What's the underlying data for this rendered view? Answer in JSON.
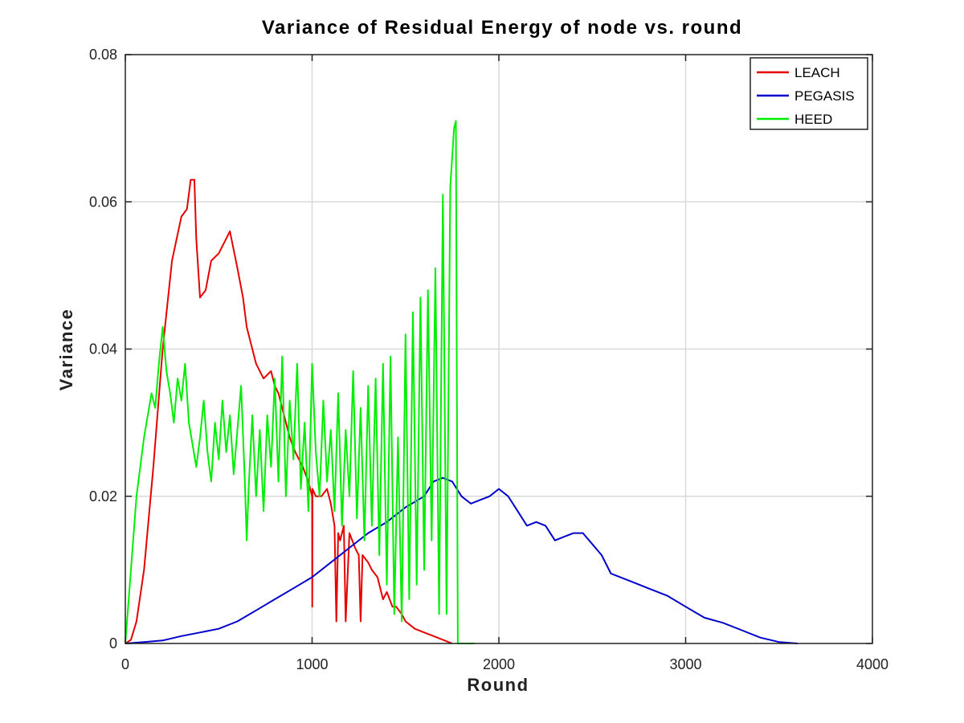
{
  "chart_data": {
    "type": "line",
    "title": "Variance of Residual Energy of node vs. round",
    "xlabel": "Round",
    "ylabel": "Variance",
    "xlim": [
      0,
      4000
    ],
    "ylim": [
      0,
      0.08
    ],
    "xticks": [
      0,
      1000,
      2000,
      3000,
      4000
    ],
    "xtick_labels": [
      "0",
      "1000",
      "2000",
      "3000",
      "4000"
    ],
    "yticks": [
      0,
      0.02,
      0.04,
      0.06,
      0.08
    ],
    "ytick_labels": [
      "0",
      "0.02",
      "0.04",
      "0.06",
      "0.08"
    ],
    "grid": true,
    "legend_position": "top-right",
    "series": [
      {
        "name": "LEACH",
        "color": "#e60000",
        "x": [
          0,
          30,
          60,
          100,
          150,
          200,
          250,
          300,
          330,
          350,
          370,
          380,
          400,
          430,
          460,
          500,
          540,
          560,
          600,
          630,
          650,
          680,
          700,
          740,
          780,
          800,
          820,
          850,
          880,
          910,
          950,
          980,
          1000,
          1001,
          1002,
          1020,
          1050,
          1080,
          1100,
          1120,
          1130,
          1140,
          1150,
          1170,
          1180,
          1200,
          1230,
          1250,
          1260,
          1270,
          1300,
          1320,
          1350,
          1380,
          1400,
          1430,
          1450,
          1480,
          1500,
          1550,
          1600,
          1650,
          1700,
          1730,
          1750
        ],
        "y": [
          0,
          0.0005,
          0.003,
          0.01,
          0.024,
          0.04,
          0.052,
          0.058,
          0.059,
          0.063,
          0.063,
          0.055,
          0.047,
          0.048,
          0.052,
          0.053,
          0.055,
          0.056,
          0.051,
          0.047,
          0.043,
          0.04,
          0.038,
          0.036,
          0.037,
          0.035,
          0.034,
          0.031,
          0.028,
          0.026,
          0.024,
          0.022,
          0.02,
          0.005,
          0.021,
          0.02,
          0.02,
          0.021,
          0.019,
          0.016,
          0.003,
          0.015,
          0.014,
          0.016,
          0.003,
          0.015,
          0.013,
          0.012,
          0.003,
          0.012,
          0.011,
          0.01,
          0.009,
          0.006,
          0.007,
          0.005,
          0.005,
          0.004,
          0.003,
          0.002,
          0.0015,
          0.001,
          0.0005,
          0.0002,
          0
        ]
      },
      {
        "name": "PEGASIS",
        "color": "#0000cc",
        "x": [
          0,
          100,
          200,
          300,
          400,
          500,
          600,
          700,
          800,
          900,
          1000,
          1100,
          1200,
          1300,
          1400,
          1500,
          1600,
          1650,
          1700,
          1750,
          1800,
          1850,
          1900,
          1950,
          2000,
          2050,
          2100,
          2150,
          2200,
          2250,
          2300,
          2350,
          2400,
          2450,
          2500,
          2550,
          2600,
          2700,
          2800,
          2900,
          3000,
          3100,
          3200,
          3300,
          3400,
          3500,
          3550,
          3600
        ],
        "y": [
          0,
          0.0002,
          0.0004,
          0.001,
          0.0015,
          0.002,
          0.003,
          0.0045,
          0.006,
          0.0075,
          0.009,
          0.011,
          0.013,
          0.015,
          0.0165,
          0.0185,
          0.02,
          0.022,
          0.0225,
          0.022,
          0.02,
          0.019,
          0.0195,
          0.02,
          0.021,
          0.02,
          0.018,
          0.016,
          0.0165,
          0.016,
          0.014,
          0.0145,
          0.015,
          0.015,
          0.0135,
          0.012,
          0.0095,
          0.0085,
          0.0075,
          0.0065,
          0.005,
          0.0035,
          0.0028,
          0.0018,
          0.0008,
          0.0002,
          0.0001,
          0
        ]
      },
      {
        "name": "HEED",
        "color": "#00ee00",
        "x": [
          0,
          30,
          60,
          100,
          140,
          160,
          180,
          200,
          220,
          240,
          260,
          280,
          300,
          320,
          340,
          360,
          380,
          400,
          420,
          440,
          460,
          480,
          500,
          520,
          540,
          560,
          580,
          600,
          620,
          640,
          650,
          660,
          680,
          700,
          720,
          740,
          760,
          780,
          800,
          820,
          840,
          860,
          880,
          900,
          920,
          940,
          960,
          980,
          1000,
          1020,
          1040,
          1060,
          1080,
          1100,
          1120,
          1140,
          1160,
          1180,
          1200,
          1220,
          1240,
          1260,
          1280,
          1300,
          1320,
          1340,
          1360,
          1380,
          1400,
          1420,
          1440,
          1460,
          1480,
          1500,
          1520,
          1540,
          1560,
          1580,
          1600,
          1620,
          1640,
          1660,
          1680,
          1700,
          1720,
          1740,
          1760,
          1770,
          1780,
          1800,
          1850,
          1870
        ],
        "y": [
          0,
          0.01,
          0.02,
          0.028,
          0.034,
          0.032,
          0.038,
          0.043,
          0.037,
          0.034,
          0.03,
          0.036,
          0.033,
          0.038,
          0.03,
          0.027,
          0.024,
          0.028,
          0.033,
          0.026,
          0.022,
          0.03,
          0.025,
          0.033,
          0.026,
          0.031,
          0.023,
          0.029,
          0.035,
          0.022,
          0.014,
          0.021,
          0.031,
          0.02,
          0.029,
          0.018,
          0.031,
          0.024,
          0.036,
          0.022,
          0.039,
          0.02,
          0.033,
          0.025,
          0.038,
          0.021,
          0.03,
          0.018,
          0.038,
          0.026,
          0.02,
          0.033,
          0.022,
          0.029,
          0.018,
          0.034,
          0.016,
          0.029,
          0.02,
          0.037,
          0.017,
          0.032,
          0.014,
          0.035,
          0.016,
          0.036,
          0.012,
          0.038,
          0.008,
          0.039,
          0.004,
          0.028,
          0.003,
          0.042,
          0.006,
          0.045,
          0.008,
          0.047,
          0.01,
          0.048,
          0.014,
          0.051,
          0.004,
          0.061,
          0.004,
          0.062,
          0.07,
          0.071,
          0,
          0,
          0,
          0
        ]
      }
    ]
  }
}
